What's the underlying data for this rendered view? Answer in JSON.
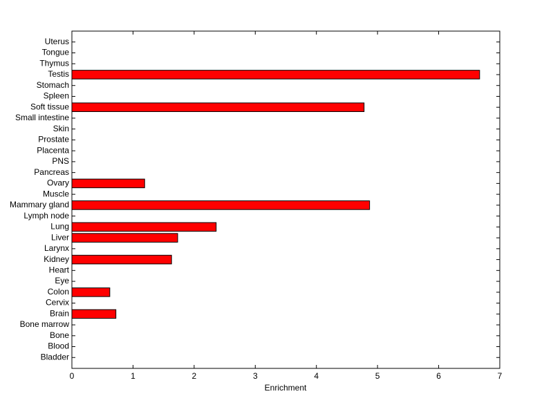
{
  "chart_data": {
    "type": "barh",
    "x_label": "Enrichment",
    "categories": [
      "Bladder",
      "Blood",
      "Bone",
      "Bone marrow",
      "Brain",
      "Cervix",
      "Colon",
      "Eye",
      "Heart",
      "Kidney",
      "Larynx",
      "Liver",
      "Lung",
      "Lymph node",
      "Mammary gland",
      "Muscle",
      "Ovary",
      "Pancreas",
      "PNS",
      "Placenta",
      "Prostate",
      "Skin",
      "Small intestine",
      "Soft tissue",
      "Spleen",
      "Stomach",
      "Testis",
      "Thymus",
      "Tongue",
      "Uterus"
    ],
    "values": [
      0,
      0,
      0,
      0,
      0.72,
      0,
      0.62,
      0,
      0,
      1.63,
      0,
      1.73,
      2.36,
      0,
      4.87,
      0,
      1.19,
      0,
      0,
      0,
      0,
      0,
      0,
      4.78,
      0,
      0,
      6.67,
      0,
      0,
      0
    ],
    "color": "#ff0000",
    "xlim": [
      0,
      7
    ],
    "xticks": [
      0,
      1,
      2,
      3,
      4,
      5,
      6,
      7
    ]
  }
}
